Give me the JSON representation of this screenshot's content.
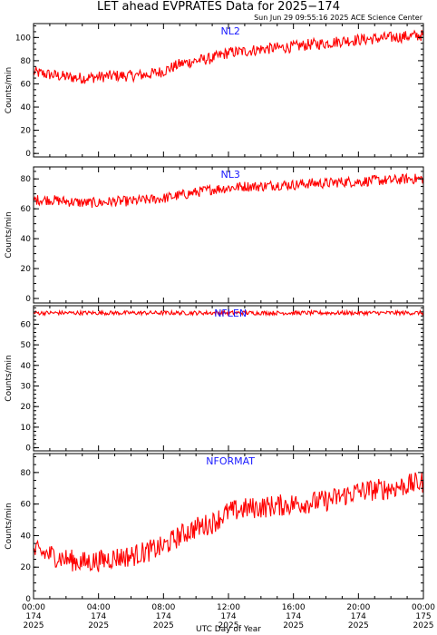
{
  "header": {
    "title": "LET ahead EVPRATES Data for 2025−174",
    "timestamp": "Sun Jun 29 09:55:16 2025 ACE Science Center"
  },
  "colors": {
    "series": "#ff0000",
    "panel_label": "#1a1aff",
    "axes": "#000000"
  },
  "chart_data": [
    {
      "type": "line",
      "panel_label": "NL2",
      "ylabel": "Counts/min",
      "ylim": [
        -3,
        112
      ],
      "yticks": [
        0,
        20,
        40,
        60,
        80,
        100
      ],
      "x_range_hours": [
        0,
        24
      ],
      "series": [
        {
          "x_hours": [
            0,
            1,
            2,
            3,
            4,
            5,
            6,
            7,
            8,
            9,
            10,
            11,
            12,
            13,
            14,
            15,
            16,
            17,
            18,
            19,
            20,
            21,
            22,
            23,
            24
          ],
          "values": [
            70,
            68,
            66,
            65,
            66,
            67,
            67,
            68,
            71,
            77,
            80,
            82,
            87,
            88,
            90,
            91,
            92,
            94,
            95,
            97,
            98,
            99,
            100,
            101,
            102
          ],
          "noise": 5
        }
      ]
    },
    {
      "type": "line",
      "panel_label": "NL3",
      "ylabel": "Counts/min",
      "ylim": [
        -3,
        88
      ],
      "yticks": [
        0,
        20,
        40,
        60,
        80
      ],
      "x_range_hours": [
        0,
        24
      ],
      "series": [
        {
          "x_hours": [
            0,
            1,
            2,
            3,
            4,
            5,
            6,
            7,
            8,
            9,
            10,
            11,
            12,
            13,
            14,
            15,
            16,
            17,
            18,
            19,
            20,
            21,
            22,
            23,
            24
          ],
          "values": [
            66,
            66,
            65,
            64,
            64,
            65,
            65,
            66,
            67,
            69,
            71,
            73,
            74,
            75,
            75,
            76,
            76,
            77,
            77,
            78,
            78,
            79,
            79,
            80,
            80
          ],
          "noise": 3.5
        }
      ]
    },
    {
      "type": "line",
      "panel_label": "NFLEN",
      "ylabel": "Counts/min",
      "ylim": [
        -1.5,
        69
      ],
      "yticks": [
        0,
        10,
        20,
        30,
        40,
        50,
        60
      ],
      "x_range_hours": [
        0,
        24
      ],
      "series": [
        {
          "x_hours": [
            0,
            24
          ],
          "values": [
            65.5,
            65.5
          ],
          "noise": 1
        }
      ]
    },
    {
      "type": "line",
      "panel_label": "NFORMAT",
      "ylabel": "Counts/min",
      "ylim": [
        0,
        92
      ],
      "yticks": [
        0,
        20,
        40,
        60,
        80
      ],
      "x_range_hours": [
        0,
        24
      ],
      "xticks": [
        {
          "time": "00:00",
          "doy": "174",
          "year": "2025"
        },
        {
          "time": "04:00",
          "doy": "174",
          "year": "2025"
        },
        {
          "time": "08:00",
          "doy": "174",
          "year": "2025"
        },
        {
          "time": "12:00",
          "doy": "174",
          "year": "2025"
        },
        {
          "time": "16:00",
          "doy": "174",
          "year": "2025"
        },
        {
          "time": "20:00",
          "doy": "174",
          "year": "2025"
        },
        {
          "time": "00:00",
          "doy": "175",
          "year": "2025"
        }
      ],
      "xlabel": "UTC Day of Year",
      "series": [
        {
          "x_hours": [
            0,
            1,
            2,
            3,
            4,
            5,
            6,
            7,
            8,
            9,
            10,
            11,
            12,
            13,
            14,
            15,
            16,
            17,
            18,
            19,
            20,
            21,
            22,
            23,
            24
          ],
          "values": [
            30,
            28,
            25,
            23,
            24,
            26,
            27,
            30,
            33,
            40,
            45,
            48,
            55,
            57,
            58,
            59,
            60,
            61,
            62,
            65,
            68,
            69,
            70,
            72,
            74
          ],
          "noise": 7
        }
      ]
    }
  ]
}
